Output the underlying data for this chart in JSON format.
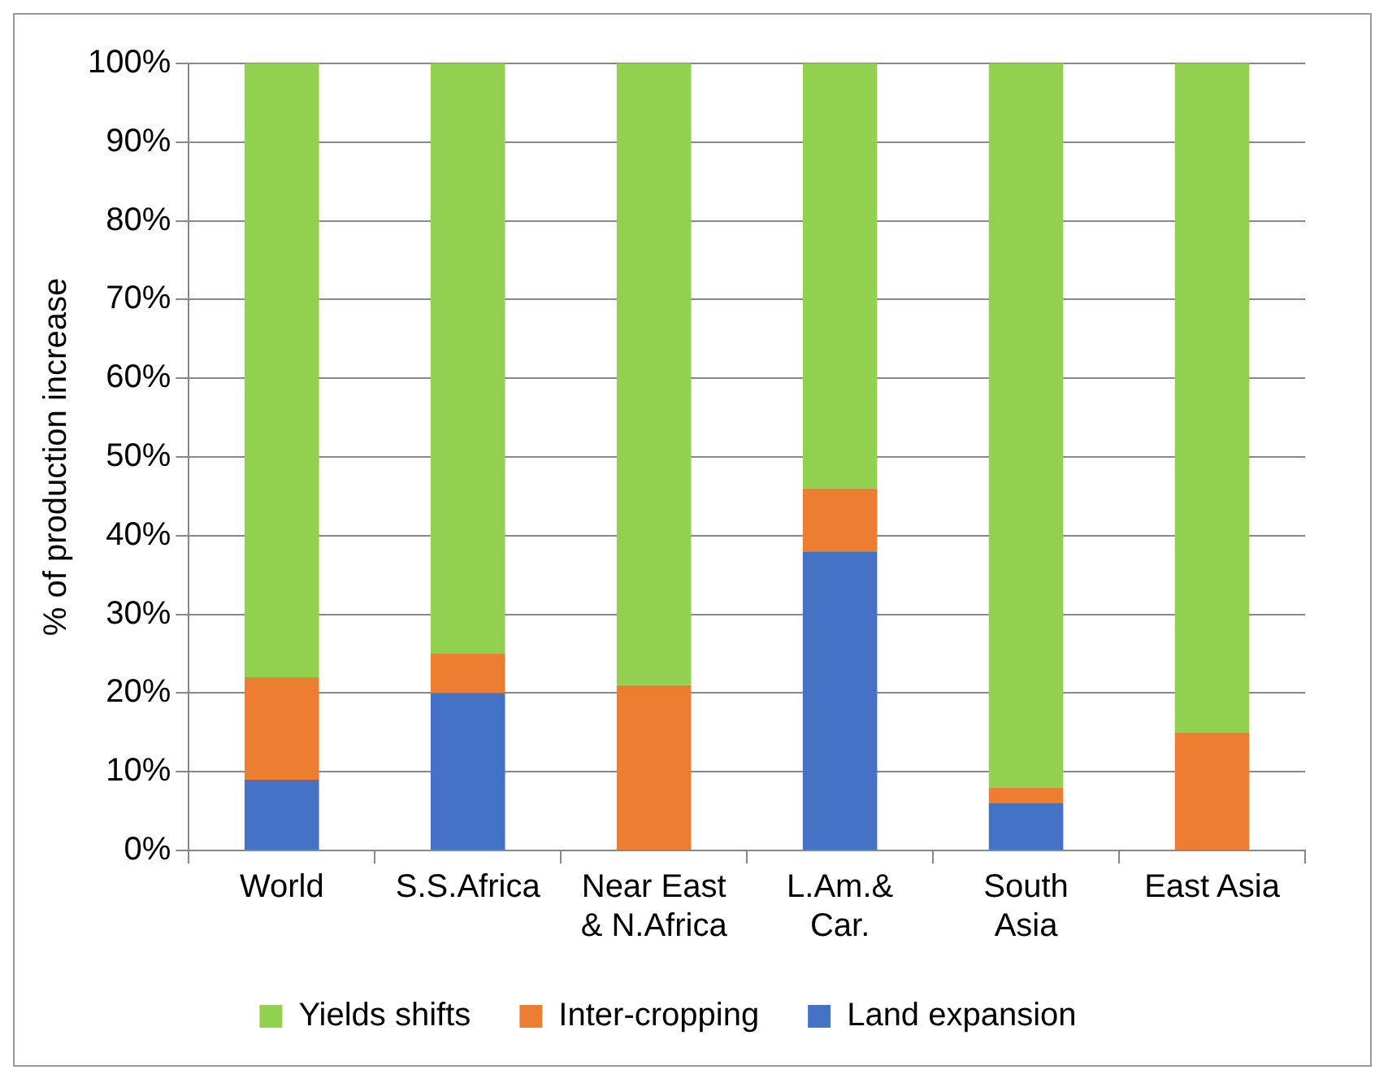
{
  "chart_data": {
    "type": "bar",
    "stacked": true,
    "ylabel": "% of production increase",
    "categories": [
      "World",
      "S.S.Africa",
      "Near East\n& N.Africa",
      "L.Am.&\nCar.",
      "South\nAsia",
      "East Asia"
    ],
    "series": [
      {
        "name": "Land expansion",
        "color": "#4472c4",
        "values": [
          9,
          20,
          0,
          38,
          6,
          0
        ]
      },
      {
        "name": "Inter-cropping",
        "color": "#ed7d31",
        "values": [
          13,
          5,
          21,
          8,
          2,
          15
        ]
      },
      {
        "name": "Yields shifts",
        "color": "#92d050",
        "values": [
          78,
          75,
          79,
          54,
          92,
          85
        ]
      }
    ],
    "ylim": [
      0,
      100
    ],
    "yticks": [
      {
        "value": 0,
        "label": "0%"
      },
      {
        "value": 10,
        "label": "10%"
      },
      {
        "value": 20,
        "label": "20%"
      },
      {
        "value": 30,
        "label": "30%"
      },
      {
        "value": 40,
        "label": "40%"
      },
      {
        "value": 50,
        "label": "50%"
      },
      {
        "value": 60,
        "label": "60%"
      },
      {
        "value": 70,
        "label": "70%"
      },
      {
        "value": 80,
        "label": "80%"
      },
      {
        "value": 90,
        "label": "90%"
      },
      {
        "value": 100,
        "label": "100%"
      }
    ],
    "grid": "y",
    "legend": "bottom"
  }
}
